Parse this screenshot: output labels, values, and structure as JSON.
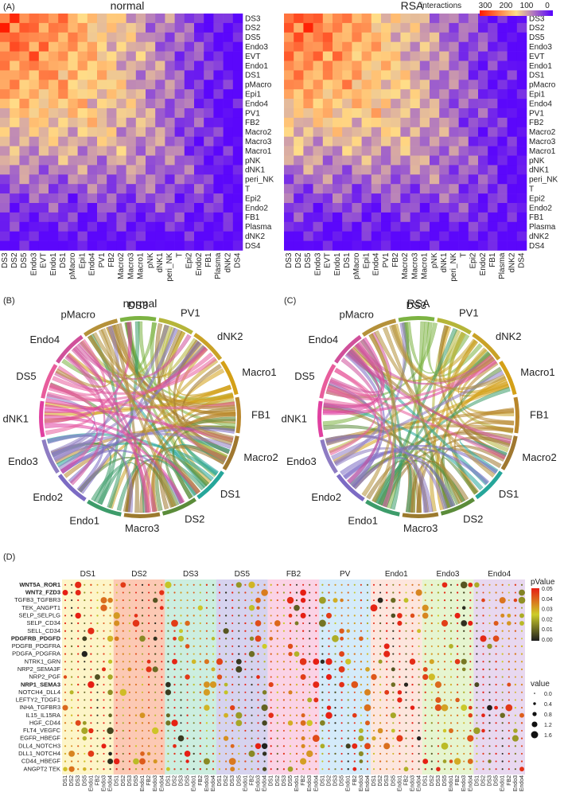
{
  "chart_data": [
    {
      "panel_label": "(A)",
      "type": "heatmap",
      "titles": [
        "normal",
        "RSA"
      ],
      "cell_types": [
        "DS3",
        "DS2",
        "DS5",
        "Endo3",
        "EVT",
        "Endo1",
        "DS1",
        "pMacro",
        "Epi1",
        "Endo4",
        "PV1",
        "FB2",
        "Macro2",
        "Macro3",
        "Macro1",
        "pNK",
        "dNK1",
        "peri_NK",
        "T",
        "Epi2",
        "Endo2",
        "FB1",
        "Plasma",
        "dNK2",
        "DS4"
      ],
      "legend_title": "interactions",
      "legend_ticks": [
        "300",
        "200",
        "100",
        "0"
      ],
      "colorscale": [
        "#ff1a00",
        "#ffdd88",
        "#5500ff"
      ],
      "value_range": [
        0,
        300
      ]
    },
    {
      "panel_label": "(B)",
      "type": "chord",
      "title": "normal",
      "sectors": [
        "DS3",
        "PV1",
        "dNK2",
        "Macro1",
        "FB1",
        "Macro2",
        "DS1",
        "DS2",
        "Macro3",
        "Endo1",
        "Endo2",
        "Endo3",
        "dNK1",
        "DS5",
        "Endo4",
        "pMacro"
      ],
      "colors": [
        "#7cb342",
        "#b5b53a",
        "#c9a227",
        "#d4a017",
        "#b8862b",
        "#a07830",
        "#26a69a",
        "#5b8c3a",
        "#9c7a2e",
        "#3d9c6a",
        "#7c6bc4",
        "#8e7cc3",
        "#e040a0",
        "#e85d9c",
        "#d0509b",
        "#b5913a"
      ]
    },
    {
      "panel_label": "(C)",
      "type": "chord",
      "title": "RSA",
      "sectors": [
        "DS3",
        "PV1",
        "dNK2",
        "Macro1",
        "FB1",
        "Macro2",
        "DS1",
        "DS2",
        "Macro3",
        "Endo1",
        "Endo2",
        "Endo3",
        "dNK1",
        "DS5",
        "Endo4",
        "pMacro"
      ],
      "colors": [
        "#7cb342",
        "#b5b53a",
        "#c9a227",
        "#d4a017",
        "#b8862b",
        "#a07830",
        "#26a69a",
        "#5b8c3a",
        "#9c7a2e",
        "#3d9c6a",
        "#7c6bc4",
        "#8e7cc3",
        "#e040a0",
        "#e85d9c",
        "#d0509b",
        "#b5913a"
      ]
    },
    {
      "panel_label": "(D)",
      "type": "scatter",
      "groups": [
        "DS1",
        "DS2",
        "DS3",
        "DS5",
        "FB2",
        "PV",
        "Endo1",
        "Endo3",
        "Endo4"
      ],
      "group_colors": [
        "#fdf5c8",
        "#fcc9b4",
        "#cceee0",
        "#d6d3ef",
        "#fbd3e6",
        "#d4ebfa",
        "#fde6de",
        "#e6f5d0",
        "#e8d8f0"
      ],
      "pairs": [
        "WNT5A_ROR1",
        "WNT2_FZD3",
        "TGFB3_TGFBR3",
        "TEK_ANGPT1",
        "SELP_SELPLG",
        "SELP_CD34",
        "SELL_CD34",
        "PDGFRB_PDGFD",
        "PDGFB_PDGFRA",
        "PDGFA_PDGFRA",
        "NTRK1_GRN",
        "NRP2_SEMA3F",
        "NRP2_PGF",
        "NRP1_SEMA3",
        "NOTCH4_DLL4",
        "LEFTY2_TDGF1",
        "INHA_TGFBR3",
        "IL15_IL15RA",
        "HGF_CD44",
        "FLT4_VEGFC",
        "EGFR_HBEGF",
        "DLL4_NOTCH3",
        "DLL1_NOTCH4",
        "CD44_HBEGF",
        "ANGPT2 TEK"
      ],
      "highlighted_pairs": [
        "WNT5A_ROR1",
        "WNT2_FZD3",
        "PDGFRB_PDGFD",
        "NRP1_SEMA3"
      ],
      "x_tick_labels": [
        "DS1",
        "DS2",
        "DS3",
        "DS5",
        "Endo1",
        "FB2",
        "Endo3",
        "Endo4"
      ],
      "pvalue_legend": {
        "title": "pValue",
        "ticks": [
          "0.05",
          "0.04",
          "0.03",
          "0.02",
          "0.01",
          "0.00"
        ]
      },
      "size_legend": {
        "title": "value",
        "ticks": [
          "0.0",
          "0.4",
          "0.8",
          "1.2",
          "1.6"
        ]
      }
    }
  ]
}
